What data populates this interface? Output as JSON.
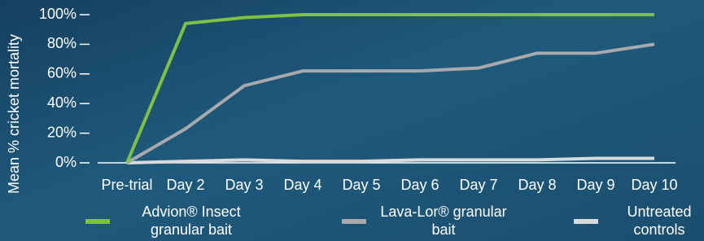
{
  "chart_data": {
    "type": "line",
    "y_label": "Mean % cricket mortality",
    "categories": [
      "Pre-trial",
      "Day 2",
      "Day 3",
      "Day 4",
      "Day 5",
      "Day 6",
      "Day 7",
      "Day 8",
      "Day 9",
      "Day 10"
    ],
    "series": [
      {
        "name": "Advion® Insect granular bait",
        "color": "#7dc242",
        "values": [
          0,
          94,
          98,
          100,
          100,
          100,
          100,
          100,
          100,
          100
        ]
      },
      {
        "name": "Lava-Lor® granular bait",
        "color": "#a7a9ac",
        "values": [
          0,
          23,
          52,
          62,
          62,
          62,
          64,
          74,
          74,
          80
        ]
      },
      {
        "name": "Untreated controls",
        "color": "#d9dadb",
        "values": [
          0,
          1,
          2,
          1,
          1,
          2,
          2,
          2,
          3,
          3
        ]
      }
    ],
    "ylim": [
      0,
      100
    ],
    "yticks": [
      {
        "value": 0,
        "label": "0%"
      },
      {
        "value": 20,
        "label": "20%"
      },
      {
        "value": 40,
        "label": "40%"
      },
      {
        "value": 60,
        "label": "60%"
      },
      {
        "value": 80,
        "label": "80%"
      },
      {
        "value": 100,
        "label": "100%"
      }
    ]
  }
}
